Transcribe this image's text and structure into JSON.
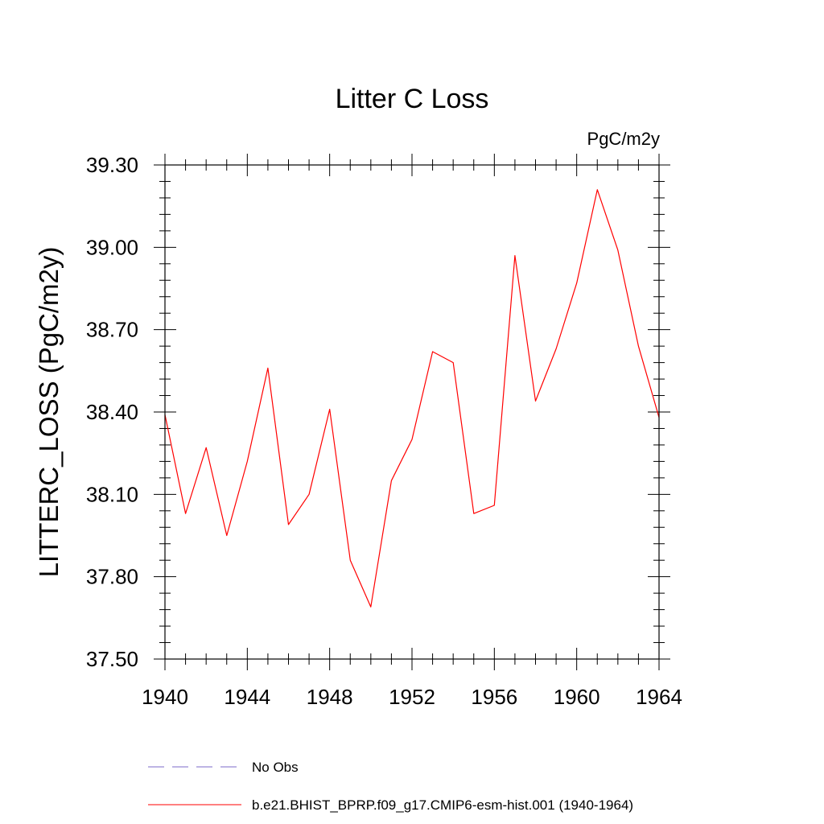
{
  "chart_data": {
    "type": "line",
    "title": "Litter C Loss",
    "units_label": "PgC/m2y",
    "ylabel": "LITTERC_LOSS  (PgC/m2y)",
    "xlabel": "",
    "xlim": [
      1940,
      1964
    ],
    "ylim": [
      37.5,
      39.3
    ],
    "x_ticks": [
      1940,
      1944,
      1948,
      1952,
      1956,
      1960,
      1964
    ],
    "x_tick_labels": [
      "1940",
      "1944",
      "1948",
      "1952",
      "1956",
      "1960",
      "1964"
    ],
    "y_ticks": [
      37.5,
      37.8,
      38.1,
      38.4,
      38.7,
      39.0,
      39.3
    ],
    "y_tick_labels": [
      "37.50",
      "37.80",
      "38.10",
      "38.40",
      "38.70",
      "39.00",
      "39.30"
    ],
    "grid": false,
    "legend_placement": "bottom",
    "series": [
      {
        "name": "No Obs",
        "color": "#7b68c8",
        "style": "dashed",
        "x": [],
        "y": []
      },
      {
        "name": "b.e21.BHIST_BPRP.f09_g17.CMIP6-esm-hist.001 (1940-1964)",
        "color": "#ff0000",
        "style": "solid",
        "x": [
          1940,
          1941,
          1942,
          1943,
          1944,
          1945,
          1946,
          1947,
          1948,
          1949,
          1950,
          1951,
          1952,
          1953,
          1954,
          1955,
          1956,
          1957,
          1958,
          1959,
          1960,
          1961,
          1962,
          1963,
          1964
        ],
        "y": [
          38.39,
          38.03,
          38.27,
          37.95,
          38.22,
          38.56,
          37.99,
          38.1,
          38.41,
          37.86,
          37.69,
          38.15,
          38.3,
          38.62,
          38.58,
          38.03,
          38.06,
          38.97,
          38.44,
          38.63,
          38.87,
          39.21,
          38.99,
          38.64,
          38.38
        ]
      }
    ]
  }
}
